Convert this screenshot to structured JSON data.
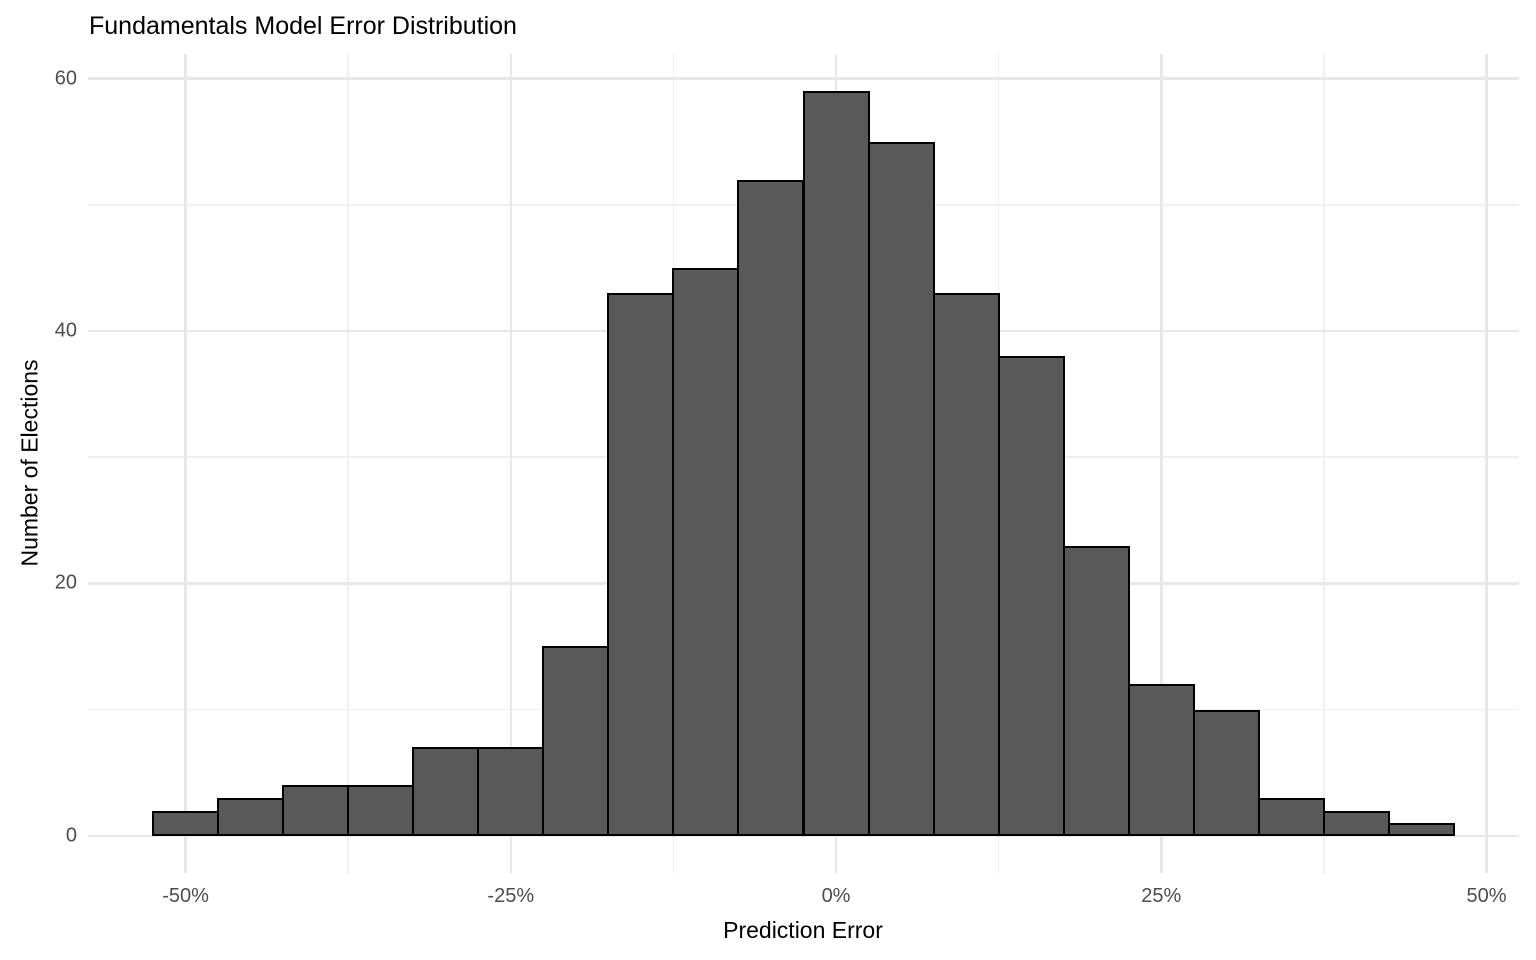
{
  "chart_data": {
    "type": "bar",
    "subtype": "histogram",
    "title": "Fundamentals Model Error Distribution",
    "xlabel": "Prediction Error",
    "ylabel": "Number of Elections",
    "bin_width_percent": 5,
    "bin_centers_percent": [
      -50,
      -45,
      -40,
      -35,
      -30,
      -25,
      -20,
      -15,
      -10,
      -5,
      0,
      5,
      10,
      15,
      20,
      25,
      30,
      35,
      40,
      45
    ],
    "values": [
      2,
      3,
      4,
      4,
      7,
      7,
      15,
      43,
      45,
      52,
      59,
      55,
      43,
      38,
      23,
      12,
      10,
      3,
      2,
      1
    ],
    "x_axis": {
      "tick_values": [
        -50,
        -25,
        0,
        25,
        50
      ],
      "tick_labels": [
        "-50%",
        "-25%",
        "0%",
        "25%",
        "50%"
      ],
      "minor_tick_values": [
        -37.5,
        -12.5,
        12.5,
        37.5
      ],
      "range": [
        -57.5,
        52.5
      ]
    },
    "y_axis": {
      "tick_values": [
        0,
        20,
        40,
        60
      ],
      "tick_labels": [
        "0",
        "20",
        "40",
        "60"
      ],
      "minor_tick_values": [
        10,
        30,
        50
      ],
      "range": [
        -2.95,
        61.95
      ]
    },
    "grid": true,
    "legend": false,
    "colors": {
      "bar_fill": "#595959",
      "bar_stroke": "#000000",
      "grid_major": "#E8E8E8",
      "grid_minor": "#F0F0F0",
      "tick_label": "#4D4D4D",
      "axis_title": "#000000",
      "title": "#000000",
      "background": "#FFFFFF"
    }
  }
}
